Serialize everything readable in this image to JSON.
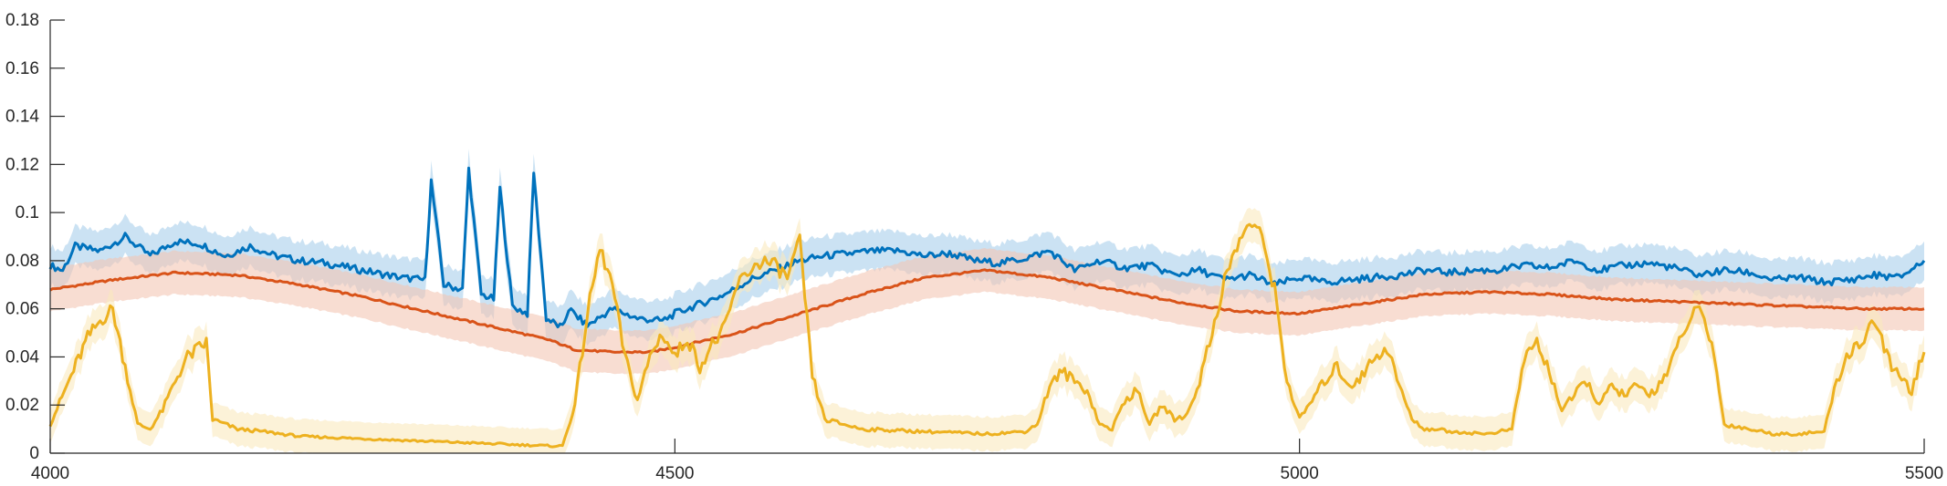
{
  "chart_data": {
    "type": "line",
    "title": "",
    "xlabel": "",
    "ylabel": "",
    "xlim": [
      4000,
      5500
    ],
    "ylim": [
      0,
      0.18
    ],
    "grid": false,
    "x_ticks": [
      4000,
      4500,
      5000,
      5500
    ],
    "x_tick_labels": [
      "4000",
      "4500",
      "5000",
      "5500"
    ],
    "y_ticks": [
      0,
      0.02,
      0.04,
      0.06,
      0.08,
      0.1,
      0.12,
      0.14,
      0.16,
      0.18
    ],
    "y_tick_labels": [
      "0",
      "0.02",
      "0.04",
      "0.06",
      "0.08",
      "0.1",
      "0.12",
      "0.14",
      "0.16",
      "0.18"
    ],
    "series": [
      {
        "color": "#0072BD",
        "band_color": "#A9CEEB",
        "x": [
          4000,
          4010,
          4020,
          4040,
          4060,
          4080,
          4100,
          4120,
          4140,
          4160,
          4180,
          4200,
          4220,
          4240,
          4260,
          4280,
          4300,
          4305,
          4315,
          4330,
          4335,
          4345,
          4355,
          4360,
          4370,
          4382,
          4387,
          4397,
          4410,
          4415,
          4430,
          4450,
          4470,
          4490,
          4500,
          4520,
          4540,
          4560,
          4580,
          4600,
          4620,
          4640,
          4660,
          4680,
          4700,
          4720,
          4740,
          4760,
          4780,
          4800,
          4820,
          4840,
          4860,
          4880,
          4900,
          4920,
          4940,
          4960,
          4980,
          5000,
          5020,
          5040,
          5060,
          5080,
          5100,
          5120,
          5140,
          5160,
          5180,
          5200,
          5220,
          5240,
          5260,
          5280,
          5300,
          5320,
          5340,
          5360,
          5380,
          5400,
          5420,
          5440,
          5460,
          5480,
          5500
        ],
        "y": [
          0.078,
          0.076,
          0.086,
          0.084,
          0.09,
          0.082,
          0.088,
          0.087,
          0.082,
          0.086,
          0.082,
          0.08,
          0.079,
          0.077,
          0.075,
          0.073,
          0.072,
          0.113,
          0.07,
          0.068,
          0.118,
          0.066,
          0.064,
          0.11,
          0.061,
          0.058,
          0.117,
          0.056,
          0.052,
          0.06,
          0.053,
          0.06,
          0.056,
          0.055,
          0.058,
          0.062,
          0.066,
          0.072,
          0.076,
          0.08,
          0.082,
          0.083,
          0.084,
          0.084,
          0.082,
          0.083,
          0.08,
          0.079,
          0.081,
          0.084,
          0.076,
          0.08,
          0.077,
          0.078,
          0.074,
          0.076,
          0.072,
          0.074,
          0.07,
          0.073,
          0.071,
          0.072,
          0.073,
          0.074,
          0.076,
          0.075,
          0.076,
          0.076,
          0.078,
          0.077,
          0.08,
          0.076,
          0.078,
          0.079,
          0.077,
          0.074,
          0.076,
          0.075,
          0.072,
          0.073,
          0.071,
          0.072,
          0.074,
          0.073,
          0.08
        ],
        "band": 0.008
      },
      {
        "color": "#D95319",
        "band_color": "#F4C6B4",
        "x": [
          4000,
          4050,
          4100,
          4150,
          4200,
          4250,
          4300,
          4350,
          4400,
          4420,
          4450,
          4480,
          4500,
          4550,
          4600,
          4650,
          4700,
          4750,
          4800,
          4850,
          4900,
          4950,
          5000,
          5050,
          5100,
          5150,
          5200,
          5250,
          5300,
          5350,
          5400,
          5450,
          5500
        ],
        "y": [
          0.068,
          0.072,
          0.075,
          0.074,
          0.07,
          0.065,
          0.059,
          0.053,
          0.047,
          0.043,
          0.042,
          0.042,
          0.044,
          0.05,
          0.058,
          0.066,
          0.073,
          0.076,
          0.073,
          0.068,
          0.063,
          0.059,
          0.058,
          0.062,
          0.066,
          0.067,
          0.066,
          0.064,
          0.063,
          0.062,
          0.061,
          0.06,
          0.06
        ],
        "band": 0.009
      },
      {
        "color": "#EDB120",
        "band_color": "#FAE9BE",
        "x": [
          4000,
          4015,
          4030,
          4040,
          4050,
          4060,
          4070,
          4080,
          4090,
          4100,
          4110,
          4125,
          4130,
          4150,
          4170,
          4200,
          4250,
          4300,
          4350,
          4400,
          4410,
          4420,
          4430,
          4440,
          4450,
          4460,
          4470,
          4480,
          4490,
          4500,
          4510,
          4520,
          4530,
          4540,
          4550,
          4560,
          4570,
          4580,
          4590,
          4600,
          4610,
          4620,
          4650,
          4700,
          4750,
          4780,
          4790,
          4800,
          4810,
          4820,
          4830,
          4840,
          4850,
          4860,
          4870,
          4880,
          4890,
          4900,
          4910,
          4920,
          4930,
          4940,
          4950,
          4960,
          4970,
          4980,
          4990,
          5000,
          5010,
          5020,
          5030,
          5040,
          5050,
          5060,
          5070,
          5080,
          5090,
          5100,
          5110,
          5120,
          5150,
          5170,
          5180,
          5190,
          5200,
          5210,
          5220,
          5230,
          5240,
          5250,
          5260,
          5270,
          5280,
          5290,
          5300,
          5310,
          5320,
          5330,
          5340,
          5360,
          5380,
          5400,
          5420,
          5430,
          5440,
          5450,
          5460,
          5470,
          5480,
          5490,
          5500
        ],
        "y": [
          0.012,
          0.03,
          0.048,
          0.055,
          0.06,
          0.036,
          0.012,
          0.01,
          0.018,
          0.03,
          0.04,
          0.046,
          0.014,
          0.01,
          0.009,
          0.007,
          0.006,
          0.005,
          0.004,
          0.003,
          0.003,
          0.02,
          0.058,
          0.085,
          0.07,
          0.04,
          0.022,
          0.04,
          0.05,
          0.04,
          0.048,
          0.036,
          0.045,
          0.052,
          0.07,
          0.076,
          0.08,
          0.078,
          0.073,
          0.088,
          0.032,
          0.014,
          0.01,
          0.009,
          0.008,
          0.009,
          0.012,
          0.028,
          0.034,
          0.03,
          0.026,
          0.012,
          0.01,
          0.022,
          0.026,
          0.012,
          0.02,
          0.014,
          0.016,
          0.03,
          0.05,
          0.072,
          0.086,
          0.096,
          0.09,
          0.068,
          0.03,
          0.014,
          0.022,
          0.03,
          0.036,
          0.028,
          0.032,
          0.04,
          0.044,
          0.028,
          0.014,
          0.01,
          0.01,
          0.009,
          0.008,
          0.01,
          0.04,
          0.046,
          0.034,
          0.018,
          0.024,
          0.03,
          0.02,
          0.028,
          0.024,
          0.028,
          0.024,
          0.03,
          0.04,
          0.054,
          0.06,
          0.046,
          0.012,
          0.01,
          0.008,
          0.008,
          0.009,
          0.03,
          0.042,
          0.046,
          0.056,
          0.04,
          0.032,
          0.026,
          0.042
        ],
        "band": 0.007
      }
    ]
  }
}
